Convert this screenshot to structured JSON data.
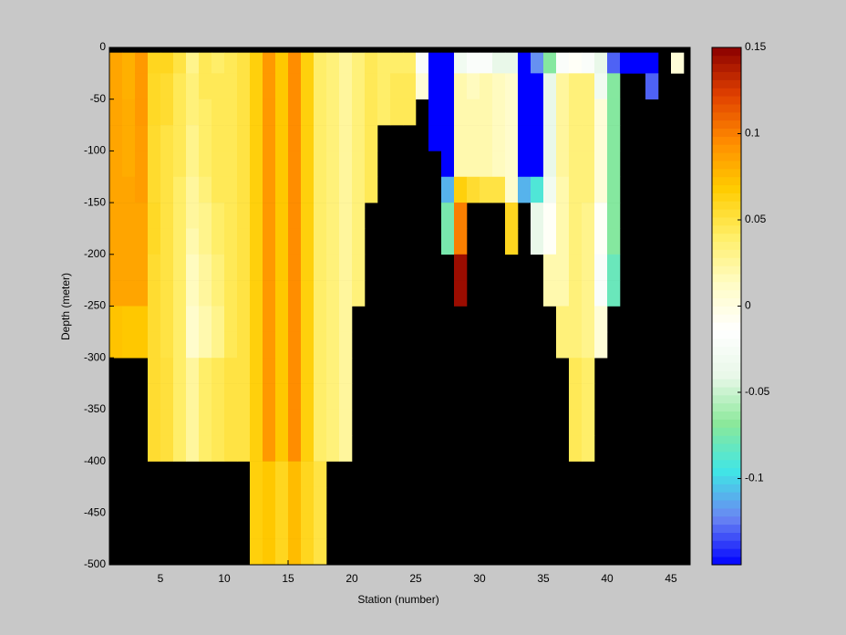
{
  "chart_data": {
    "type": "heatmap",
    "xlabel": "Station (number)",
    "ylabel": "Depth (meter)",
    "xlim": [
      1,
      46.5
    ],
    "ylim": [
      -500,
      0
    ],
    "xticks": [
      5,
      10,
      15,
      20,
      25,
      30,
      35,
      40,
      45
    ],
    "yticks": [
      0,
      -50,
      -100,
      -150,
      -200,
      -250,
      -300,
      -350,
      -400,
      -450,
      -500
    ],
    "x_edges": [
      1,
      2,
      3,
      4,
      5,
      6,
      7,
      8,
      9,
      10,
      11,
      12,
      13,
      14,
      15,
      16,
      17,
      18,
      19,
      20,
      21,
      22,
      23,
      24,
      25,
      26,
      27,
      28,
      29,
      30,
      31,
      32,
      33,
      34,
      35,
      36,
      37,
      38,
      39,
      40,
      41,
      42,
      43,
      44,
      45,
      46,
      47
    ],
    "y_edges": [
      -5,
      -25,
      -50,
      -75,
      -100,
      -125,
      -150,
      -175,
      -200,
      -225,
      -250,
      -275,
      -300,
      -325,
      -350,
      -375,
      -400,
      -425,
      -450,
      -475,
      -500
    ],
    "clim": [
      -0.15,
      0.15
    ],
    "cticks": [
      -0.1,
      -0.05,
      0,
      0.05,
      0.1,
      0.15
    ],
    "colormap": [
      "#0000ff",
      "#6a86f2",
      "#40e6e6",
      "#8ae89a",
      "#e8f8e8",
      "#ffffff",
      "#fffcc4",
      "#ffee66",
      "#ffcc00",
      "#ff8c00",
      "#e04000",
      "#8b0000"
    ],
    "background": "#000000",
    "z": [
      [
        0.085,
        0.085,
        0.085,
        0.085,
        0.085,
        0.085,
        0.085,
        0.085,
        0.085,
        0.085,
        0.072,
        0.072,
        null,
        null,
        null,
        null,
        null,
        null,
        null,
        null
      ],
      [
        0.08,
        0.08,
        0.082,
        0.082,
        0.082,
        0.085,
        0.085,
        0.085,
        0.085,
        0.085,
        0.07,
        0.07,
        null,
        null,
        null,
        null,
        null,
        null,
        null,
        null
      ],
      [
        0.09,
        0.09,
        0.09,
        0.088,
        0.088,
        0.088,
        0.085,
        0.085,
        0.085,
        0.085,
        0.07,
        0.07,
        null,
        null,
        null,
        null,
        null,
        null,
        null,
        null
      ],
      [
        0.06,
        0.058,
        0.058,
        0.056,
        0.056,
        0.056,
        0.058,
        0.058,
        0.055,
        0.055,
        0.055,
        0.055,
        0.055,
        0.055,
        0.055,
        0.055,
        null,
        null,
        null,
        null
      ],
      [
        0.06,
        0.055,
        0.055,
        0.05,
        0.05,
        0.05,
        0.05,
        0.05,
        0.05,
        0.05,
        0.05,
        0.05,
        0.052,
        0.052,
        0.052,
        0.052,
        null,
        null,
        null,
        null
      ],
      [
        0.05,
        0.045,
        0.045,
        0.045,
        0.045,
        0.04,
        0.04,
        0.04,
        0.04,
        0.04,
        0.04,
        0.04,
        0.04,
        0.04,
        0.04,
        0.04,
        null,
        null,
        null,
        null
      ],
      [
        0.03,
        0.035,
        0.035,
        0.03,
        0.03,
        0.025,
        0.025,
        0.02,
        0.015,
        0.015,
        0.01,
        0.01,
        0.025,
        0.025,
        0.025,
        0.025,
        null,
        null,
        null,
        null
      ],
      [
        0.045,
        0.045,
        0.04,
        0.04,
        0.04,
        0.035,
        0.03,
        0.03,
        0.025,
        0.025,
        0.02,
        0.02,
        0.04,
        0.04,
        0.04,
        0.04,
        null,
        null,
        null,
        null
      ],
      [
        0.04,
        0.045,
        0.045,
        0.045,
        0.045,
        0.045,
        0.04,
        0.04,
        0.035,
        0.035,
        0.03,
        0.03,
        0.045,
        0.045,
        0.045,
        0.045,
        null,
        null,
        null,
        null
      ],
      [
        0.045,
        0.045,
        0.045,
        0.045,
        0.045,
        0.045,
        0.045,
        0.045,
        0.045,
        0.045,
        0.045,
        0.045,
        0.05,
        0.05,
        0.05,
        0.05,
        null,
        null,
        null,
        null
      ],
      [
        0.05,
        0.05,
        0.05,
        0.05,
        0.05,
        0.05,
        0.05,
        0.05,
        0.05,
        0.05,
        0.05,
        0.05,
        0.05,
        0.05,
        0.05,
        0.05,
        null,
        null,
        null,
        null
      ],
      [
        0.065,
        0.065,
        0.065,
        0.065,
        0.065,
        0.065,
        0.065,
        0.065,
        0.065,
        0.065,
        0.065,
        0.065,
        0.065,
        0.065,
        0.065,
        0.065,
        0.065,
        0.065,
        0.065,
        0.065
      ],
      [
        0.09,
        0.09,
        0.09,
        0.09,
        0.09,
        0.09,
        0.09,
        0.09,
        0.09,
        0.09,
        0.09,
        0.09,
        0.09,
        0.09,
        0.09,
        0.09,
        0.07,
        0.07,
        0.07,
        0.07
      ],
      [
        0.07,
        0.07,
        0.07,
        0.07,
        0.07,
        0.07,
        0.07,
        0.07,
        0.07,
        0.07,
        0.07,
        0.07,
        0.07,
        0.07,
        0.07,
        0.07,
        0.06,
        0.06,
        0.06,
        0.06
      ],
      [
        0.095,
        0.095,
        0.095,
        0.095,
        0.095,
        0.095,
        0.095,
        0.095,
        0.095,
        0.095,
        0.095,
        0.095,
        0.095,
        0.095,
        0.095,
        0.095,
        0.075,
        0.075,
        0.075,
        0.075
      ],
      [
        0.065,
        0.065,
        0.065,
        0.065,
        0.065,
        0.065,
        0.065,
        0.065,
        0.065,
        0.065,
        0.065,
        0.065,
        0.065,
        0.065,
        0.065,
        0.065,
        0.06,
        0.06,
        0.06,
        0.06
      ],
      [
        0.04,
        0.04,
        0.04,
        0.04,
        0.04,
        0.04,
        0.04,
        0.04,
        0.04,
        0.04,
        0.04,
        0.04,
        0.04,
        0.04,
        0.04,
        0.04,
        0.05,
        0.05,
        0.05,
        0.05
      ],
      [
        0.035,
        0.035,
        0.035,
        0.035,
        0.035,
        0.035,
        0.035,
        0.035,
        0.035,
        0.035,
        0.035,
        0.035,
        0.035,
        0.035,
        0.035,
        0.035,
        null,
        null,
        null,
        null
      ],
      [
        0.025,
        0.025,
        0.025,
        0.025,
        0.025,
        0.025,
        0.025,
        0.025,
        0.025,
        0.025,
        0.025,
        0.025,
        0.025,
        0.025,
        0.025,
        0.025,
        null,
        null,
        null,
        null
      ],
      [
        0.035,
        0.035,
        0.035,
        0.035,
        0.035,
        0.035,
        0.035,
        0.035,
        0.035,
        0.035,
        null,
        null,
        null,
        null,
        null,
        null,
        null,
        null,
        null,
        null
      ],
      [
        0.045,
        0.045,
        0.045,
        0.045,
        0.045,
        0.045,
        null,
        null,
        null,
        null,
        null,
        null,
        null,
        null,
        null,
        null,
        null,
        null,
        null,
        null
      ],
      [
        0.04,
        0.04,
        0.04,
        null,
        null,
        null,
        null,
        null,
        null,
        null,
        null,
        null,
        null,
        null,
        null,
        null,
        null,
        null,
        null,
        null
      ],
      [
        0.04,
        0.045,
        0.045,
        null,
        null,
        null,
        null,
        null,
        null,
        null,
        null,
        null,
        null,
        null,
        null,
        null,
        null,
        null,
        null,
        null
      ],
      [
        0.04,
        0.045,
        0.045,
        null,
        null,
        null,
        null,
        null,
        null,
        null,
        null,
        null,
        null,
        null,
        null,
        null,
        null,
        null,
        null,
        null
      ],
      [
        -0.02,
        0.005,
        null,
        null,
        null,
        null,
        null,
        null,
        null,
        null,
        null,
        null,
        null,
        null,
        null,
        null,
        null,
        null,
        null,
        null
      ],
      [
        -0.15,
        -0.15,
        -0.15,
        -0.15,
        null,
        null,
        null,
        null,
        null,
        null,
        null,
        null,
        null,
        null,
        null,
        null,
        null,
        null,
        null,
        null
      ],
      [
        -0.15,
        -0.15,
        -0.15,
        -0.15,
        -0.15,
        -0.11,
        -0.075,
        -0.075,
        null,
        null,
        null,
        null,
        null,
        null,
        null,
        null,
        null,
        null,
        null,
        null
      ],
      [
        -0.03,
        0.02,
        0.02,
        0.02,
        0.02,
        0.065,
        0.1,
        0.1,
        0.145,
        0.145,
        null,
        null,
        null,
        null,
        null,
        null,
        null,
        null,
        null,
        null
      ],
      [
        -0.02,
        0.015,
        0.02,
        0.02,
        0.02,
        0.055,
        null,
        null,
        null,
        null,
        null,
        null,
        null,
        null,
        null,
        null,
        null,
        null,
        null,
        null
      ],
      [
        -0.02,
        0.02,
        0.02,
        0.02,
        0.02,
        0.05,
        null,
        null,
        null,
        null,
        null,
        null,
        null,
        null,
        null,
        null,
        null,
        null,
        null,
        null
      ],
      [
        -0.04,
        0.015,
        0.015,
        0.015,
        0.015,
        0.05,
        null,
        null,
        null,
        null,
        null,
        null,
        null,
        null,
        null,
        null,
        null,
        null,
        null,
        null
      ],
      [
        -0.04,
        0.01,
        0.01,
        0.01,
        0.01,
        0.01,
        0.06,
        0.06,
        null,
        null,
        null,
        null,
        null,
        null,
        null,
        null,
        null,
        null,
        null,
        null
      ],
      [
        -0.15,
        -0.15,
        -0.15,
        -0.15,
        -0.15,
        -0.11,
        null,
        null,
        null,
        null,
        null,
        null,
        null,
        null,
        null,
        null,
        null,
        null,
        null,
        null
      ],
      [
        -0.12,
        -0.15,
        -0.15,
        -0.15,
        -0.15,
        -0.09,
        -0.04,
        -0.04,
        null,
        null,
        null,
        null,
        null,
        null,
        null,
        null,
        null,
        null,
        null,
        null
      ],
      [
        -0.07,
        -0.04,
        -0.04,
        -0.04,
        -0.04,
        -0.03,
        -0.01,
        -0.01,
        0.02,
        0.02,
        null,
        null,
        null,
        null,
        null,
        null,
        null,
        null,
        null,
        null
      ],
      [
        -0.02,
        0.025,
        0.025,
        0.025,
        0.025,
        0.02,
        0.02,
        0.02,
        0.02,
        0.02,
        0.035,
        0.035,
        null,
        null,
        null,
        null,
        null,
        null,
        null,
        null
      ],
      [
        -0.01,
        0.035,
        0.035,
        0.035,
        0.035,
        0.035,
        0.035,
        0.035,
        0.035,
        0.035,
        0.035,
        0.035,
        0.045,
        0.045,
        0.045,
        0.045,
        null,
        null,
        null,
        null
      ],
      [
        -0.02,
        0.035,
        0.035,
        0.035,
        0.035,
        0.035,
        0.03,
        0.03,
        0.03,
        0.03,
        0.03,
        0.03,
        0.04,
        0.04,
        0.04,
        0.04,
        null,
        null,
        null,
        null
      ],
      [
        -0.04,
        -0.03,
        0.005,
        0.005,
        0.005,
        0.005,
        -0.01,
        -0.01,
        -0.02,
        -0.02,
        0.005,
        0.005,
        null,
        null,
        null,
        null,
        null,
        null,
        null,
        null
      ],
      [
        -0.13,
        -0.07,
        -0.07,
        -0.07,
        -0.07,
        -0.07,
        -0.07,
        -0.07,
        -0.08,
        -0.08,
        null,
        null,
        null,
        null,
        null,
        null,
        null,
        null,
        null,
        null
      ],
      [
        -0.15,
        null,
        null,
        null,
        null,
        null,
        null,
        null,
        null,
        null,
        null,
        null,
        null,
        null,
        null,
        null,
        null,
        null,
        null,
        null
      ],
      [
        -0.15,
        null,
        null,
        null,
        null,
        null,
        null,
        null,
        null,
        null,
        null,
        null,
        null,
        null,
        null,
        null,
        null,
        null,
        null,
        null
      ],
      [
        -0.15,
        -0.13,
        null,
        null,
        null,
        null,
        null,
        null,
        null,
        null,
        null,
        null,
        null,
        null,
        null,
        null,
        null,
        null,
        null,
        null
      ],
      [
        null,
        null,
        null,
        null,
        null,
        null,
        null,
        null,
        null,
        null,
        null,
        null,
        null,
        null,
        null,
        null,
        null,
        null,
        null,
        null
      ],
      [
        0.005,
        null,
        null,
        null,
        null,
        null,
        null,
        null,
        null,
        null,
        null,
        null,
        null,
        null,
        null,
        null,
        null,
        null,
        null,
        null
      ],
      [
        null,
        null,
        null,
        null,
        null,
        null,
        null,
        null,
        null,
        null,
        null,
        null,
        null,
        null,
        null,
        null,
        null,
        null,
        null,
        null
      ]
    ]
  }
}
